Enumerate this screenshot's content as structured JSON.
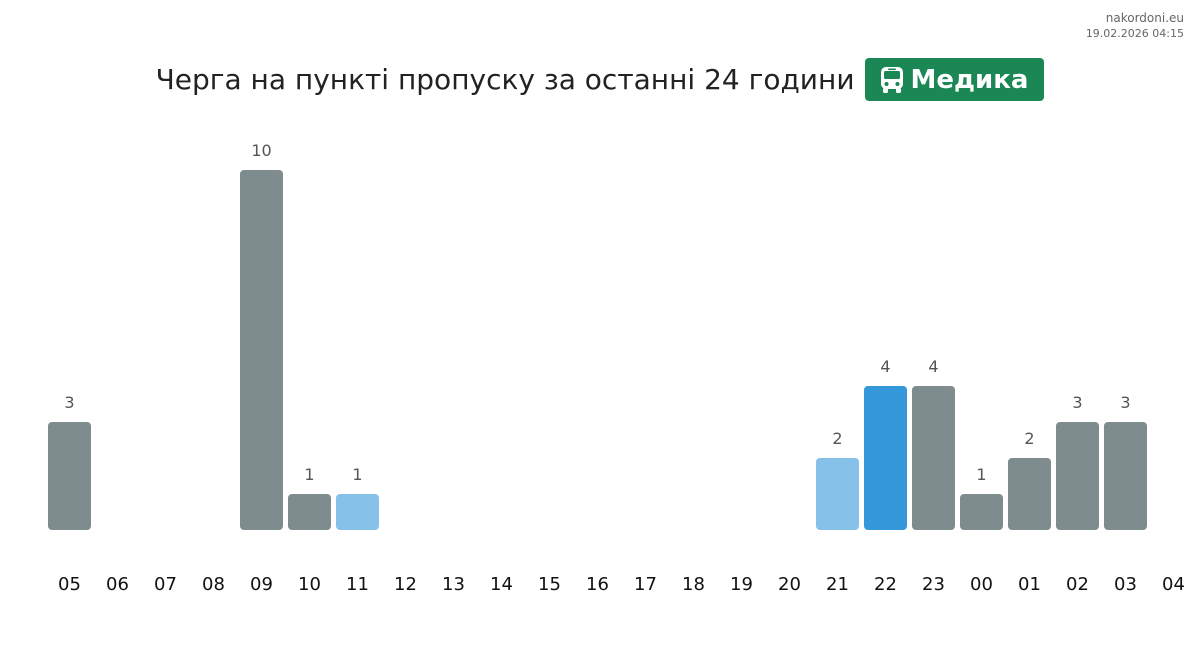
{
  "brand": {
    "site": "nakordoni.eu",
    "timestamp": "19.02.2026 04:15"
  },
  "header": {
    "title": "Черга на пункті пропуску за останні 24 години",
    "checkpoint": "Медика",
    "badge_icon": "bus-icon",
    "badge_color": "#1a8754"
  },
  "chart_data": {
    "type": "bar",
    "title": "Черга на пункті пропуску за останні 24 години",
    "xlabel": "",
    "ylabel": "",
    "categories": [
      "05",
      "06",
      "07",
      "08",
      "09",
      "10",
      "11",
      "12",
      "13",
      "14",
      "15",
      "16",
      "17",
      "18",
      "19",
      "20",
      "21",
      "22",
      "23",
      "00",
      "01",
      "02",
      "03",
      "04"
    ],
    "values": [
      3,
      0,
      0,
      0,
      10,
      1,
      1,
      0,
      0,
      0,
      0,
      0,
      0,
      0,
      0,
      0,
      2,
      4,
      4,
      1,
      2,
      3,
      3,
      0
    ],
    "highlight": [
      false,
      false,
      false,
      false,
      false,
      false,
      "light",
      false,
      false,
      false,
      false,
      false,
      false,
      false,
      false,
      false,
      "light",
      "strong",
      false,
      false,
      false,
      false,
      false,
      false
    ],
    "ylim": [
      0,
      10
    ],
    "grid": false,
    "legend": "none",
    "colors": {
      "default": "#7f8c8d",
      "light": "#85c1e9",
      "strong": "#3498db",
      "label": "#555555",
      "tick": "#111111"
    }
  }
}
